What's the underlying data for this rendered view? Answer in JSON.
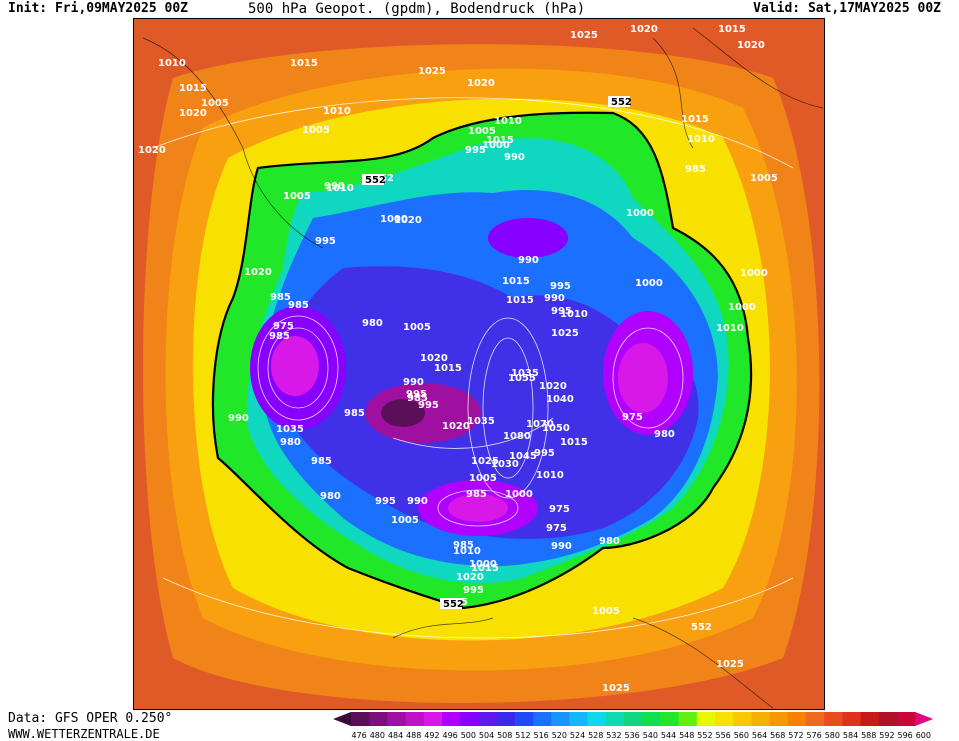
{
  "header": {
    "init": "Init: Fri,09MAY2025 00Z",
    "title": "500 hPa Geopot. (gpdm), Bodendruck (hPa)",
    "valid": "Valid: Sat,17MAY2025 00Z"
  },
  "footer": {
    "data_source": "Data: GFS OPER 0.250°",
    "website": "WWW.WETTERZENTRALE.DE"
  },
  "map": {
    "contour_label_552": "552",
    "pressure_labels": [
      "1025",
      "1020",
      "1015",
      "1020",
      "1010",
      "1015",
      "1015",
      "1025",
      "1020",
      "1005",
      "1020",
      "1010",
      "1015",
      "1005",
      "1010",
      "1005",
      "1010",
      "1015",
      "1000",
      "1020",
      "995",
      "990",
      "990",
      "1005",
      "552",
      "985",
      "1010",
      "1005",
      "995",
      "1000",
      "1000",
      "1020",
      "990",
      "1015",
      "1000",
      "1020",
      "995",
      "1000",
      "1015",
      "985",
      "990",
      "995",
      "985",
      "980",
      "1000",
      "1010",
      "975",
      "985",
      "1010",
      "1005",
      "1020",
      "1025",
      "1015",
      "990",
      "1035",
      "1055",
      "1020",
      "995",
      "985",
      "1040",
      "995",
      "1035",
      "975",
      "1020",
      "985",
      "1070",
      "1050",
      "980",
      "1035",
      "1015",
      "1080",
      "1045",
      "990",
      "995",
      "1030",
      "1025",
      "980",
      "1010",
      "985",
      "1005",
      "1000",
      "980",
      "990",
      "995",
      "985",
      "1005",
      "975",
      "975",
      "1010",
      "1015",
      "985",
      "980",
      "1000",
      "990",
      "1020",
      "995",
      "1005",
      "1015",
      "552",
      "1025",
      "1020",
      "1025",
      "1020"
    ]
  },
  "colorbar": {
    "labels": [
      "476",
      "480",
      "484",
      "488",
      "492",
      "496",
      "500",
      "504",
      "508",
      "512",
      "516",
      "520",
      "524",
      "528",
      "532",
      "536",
      "540",
      "544",
      "548",
      "552",
      "556",
      "560",
      "564",
      "568",
      "572",
      "576",
      "580",
      "584",
      "588",
      "592",
      "596",
      "600"
    ],
    "colors": [
      "#3a0a3a",
      "#5a0f5a",
      "#7a107a",
      "#a010a0",
      "#c010c8",
      "#d818e8",
      "#b000ff",
      "#8800ff",
      "#6018f0",
      "#3c28e8",
      "#2048ff",
      "#1c70ff",
      "#1894ff",
      "#10b8ff",
      "#10d8e8",
      "#10d8b0",
      "#10d880",
      "#10e050",
      "#20e828",
      "#60f010",
      "#e8f800",
      "#f8e000",
      "#f8c800",
      "#f8b000",
      "#f89800",
      "#f88000",
      "#f06820",
      "#e84c20",
      "#e03020",
      "#c81818",
      "#b01028",
      "#c80838",
      "#e00880"
    ]
  }
}
